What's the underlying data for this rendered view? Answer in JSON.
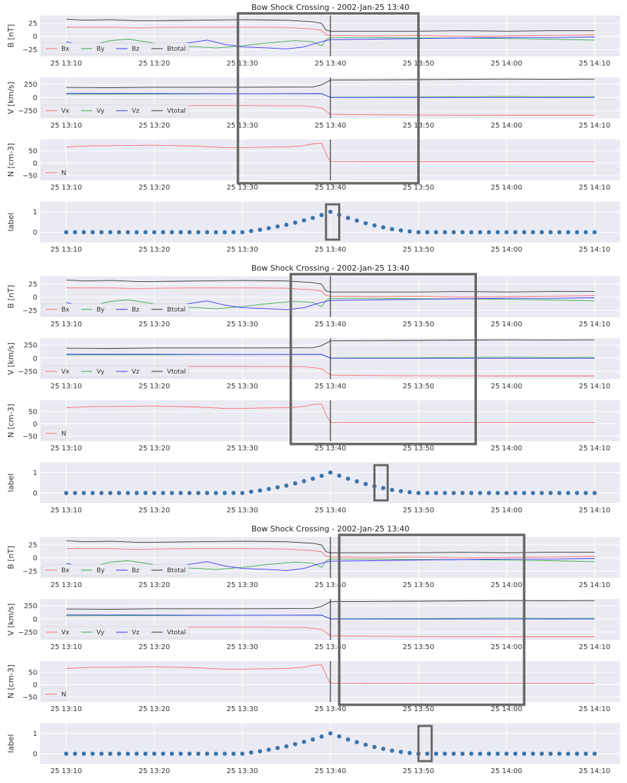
{
  "chart_data": [
    {
      "type": "line",
      "title": "Bow Shock Crossing - 2002-Jan-25 13:40",
      "x_time_range": [
        "2002-01-25 13:07",
        "2002-01-25 14:13"
      ],
      "x_ticks": [
        "25 13:10",
        "25 13:20",
        "25 13:30",
        "25 13:40",
        "25 13:50",
        "25 14:00",
        "25 14:10"
      ],
      "shock_time": "2002-01-25 13:40",
      "grid": true,
      "legend_position": "lower-left",
      "panels": [
        {
          "id": "B",
          "ylabel": "B [nT]",
          "ylim": [
            -38,
            40
          ],
          "yticks": [
            "25",
            "0",
            "−25"
          ],
          "ytick_values": [
            25,
            0,
            -25
          ],
          "series": [
            {
              "name": "Bx",
              "color": "#ff6b6b",
              "points": [
                [
                  "13:10",
                  18
                ],
                [
                  "13:15",
                  18
                ],
                [
                  "13:18",
                  16
                ],
                [
                  "13:20",
                  17
                ],
                [
                  "13:25",
                  18
                ],
                [
                  "13:30",
                  18
                ],
                [
                  "13:35",
                  17
                ],
                [
                  "13:38",
                  14
                ],
                [
                  "13:39",
                  12
                ],
                [
                  "13:39.5",
                  3
                ],
                [
                  "13:40",
                  2
                ],
                [
                  "13:45",
                  1
                ],
                [
                  "13:50",
                  2
                ],
                [
                  "13:55",
                  0
                ],
                [
                  "14:00",
                  1
                ],
                [
                  "14:05",
                  2
                ],
                [
                  "14:10",
                  3
                ]
              ]
            },
            {
              "name": "By",
              "color": "#3aa84a",
              "points": [
                [
                  "13:10",
                  -20
                ],
                [
                  "13:13",
                  -16
                ],
                [
                  "13:15",
                  -8
                ],
                [
                  "13:17",
                  -5
                ],
                [
                  "13:19",
                  -10
                ],
                [
                  "13:22",
                  -18
                ],
                [
                  "13:25",
                  -20
                ],
                [
                  "13:27",
                  -22
                ],
                [
                  "13:30",
                  -18
                ],
                [
                  "13:33",
                  -12
                ],
                [
                  "13:36",
                  -8
                ],
                [
                  "13:38",
                  -10
                ],
                [
                  "13:39",
                  -18
                ],
                [
                  "13:39.5",
                  -6
                ],
                [
                  "13:40",
                  -2
                ],
                [
                  "13:45",
                  -2
                ],
                [
                  "13:50",
                  -3
                ],
                [
                  "13:55",
                  -3
                ],
                [
                  "14:00",
                  -4
                ],
                [
                  "14:05",
                  -5
                ],
                [
                  "14:10",
                  -7
                ]
              ]
            },
            {
              "name": "Bz",
              "color": "#3333ff",
              "points": [
                [
                  "13:10",
                  -10
                ],
                [
                  "13:12",
                  -18
                ],
                [
                  "13:14",
                  -22
                ],
                [
                  "13:16",
                  -20
                ],
                [
                  "13:20",
                  -18
                ],
                [
                  "13:24",
                  -12
                ],
                [
                  "13:26",
                  -7
                ],
                [
                  "13:28",
                  -15
                ],
                [
                  "13:30",
                  -20
                ],
                [
                  "13:33",
                  -22
                ],
                [
                  "13:35",
                  -24
                ],
                [
                  "13:37",
                  -20
                ],
                [
                  "13:38.5",
                  -12
                ],
                [
                  "13:39.5",
                  -8
                ],
                [
                  "13:40",
                  -6
                ],
                [
                  "13:45",
                  -5
                ],
                [
                  "13:50",
                  -4
                ],
                [
                  "13:55",
                  -3
                ],
                [
                  "14:00",
                  -2
                ],
                [
                  "14:05",
                  -2
                ],
                [
                  "14:10",
                  -1
                ]
              ]
            },
            {
              "name": "Btotal",
              "color": "#333333",
              "points": [
                [
                  "13:10",
                  33
                ],
                [
                  "13:12",
                  31
                ],
                [
                  "13:15",
                  32
                ],
                [
                  "13:18",
                  30
                ],
                [
                  "13:20",
                  30
                ],
                [
                  "13:25",
                  31
                ],
                [
                  "13:30",
                  32
                ],
                [
                  "13:35",
                  31
                ],
                [
                  "13:38",
                  28
                ],
                [
                  "13:39",
                  25
                ],
                [
                  "13:39.5",
                  12
                ],
                [
                  "13:40",
                  10
                ],
                [
                  "13:45",
                  10
                ],
                [
                  "13:50",
                  10
                ],
                [
                  "13:55",
                  11
                ],
                [
                  "14:00",
                  10
                ],
                [
                  "14:05",
                  11
                ],
                [
                  "14:10",
                  11
                ]
              ]
            }
          ]
        },
        {
          "id": "V",
          "ylabel": "V [km/s]",
          "ylim": [
            -400,
            380
          ],
          "yticks": [
            "250",
            "0",
            "−250"
          ],
          "ytick_values": [
            250,
            0,
            -250
          ],
          "series": [
            {
              "name": "Vx",
              "color": "#ff6b6b",
              "points": [
                [
                  "13:10",
                  -160
                ],
                [
                  "13:20",
                  -155
                ],
                [
                  "13:30",
                  -155
                ],
                [
                  "13:37",
                  -160
                ],
                [
                  "13:39",
                  -200
                ],
                [
                  "13:40",
                  -320
                ],
                [
                  "13:45",
                  -330
                ],
                [
                  "13:50",
                  -335
                ],
                [
                  "14:00",
                  -340
                ],
                [
                  "14:10",
                  -340
                ]
              ]
            },
            {
              "name": "Vy",
              "color": "#3aa84a",
              "points": [
                [
                  "13:10",
                  60
                ],
                [
                  "13:20",
                  65
                ],
                [
                  "13:30",
                  70
                ],
                [
                  "13:39",
                  70
                ],
                [
                  "13:40",
                  5
                ],
                [
                  "13:50",
                  8
                ],
                [
                  "14:00",
                  20
                ],
                [
                  "14:05",
                  12
                ],
                [
                  "14:10",
                  15
                ]
              ]
            },
            {
              "name": "Vz",
              "color": "#3333ff",
              "points": [
                [
                  "13:10",
                  80
                ],
                [
                  "13:20",
                  75
                ],
                [
                  "13:30",
                  70
                ],
                [
                  "13:39",
                  75
                ],
                [
                  "13:40",
                  0
                ],
                [
                  "13:50",
                  0
                ],
                [
                  "14:00",
                  0
                ],
                [
                  "14:10",
                  0
                ]
              ]
            },
            {
              "name": "Vtotal",
              "color": "#333333",
              "points": [
                [
                  "13:10",
                  190
                ],
                [
                  "13:15",
                  185
                ],
                [
                  "13:20",
                  195
                ],
                [
                  "13:30",
                  195
                ],
                [
                  "13:38",
                  200
                ],
                [
                  "13:39",
                  240
                ],
                [
                  "13:40",
                  330
                ],
                [
                  "13:45",
                  335
                ],
                [
                  "13:50",
                  340
                ],
                [
                  "14:00",
                  350
                ],
                [
                  "14:05",
                  345
                ],
                [
                  "14:10",
                  350
                ]
              ]
            }
          ]
        },
        {
          "id": "N",
          "ylabel": "N [cm-3]",
          "ylim": [
            -70,
            95
          ],
          "yticks": [
            "50",
            "0",
            "−50"
          ],
          "ytick_values": [
            50,
            0,
            -50
          ],
          "series": [
            {
              "name": "N",
              "color": "#ff6b6b",
              "points": [
                [
                  "13:10",
                  65
                ],
                [
                  "13:13",
                  70
                ],
                [
                  "13:15",
                  70
                ],
                [
                  "13:20",
                  72
                ],
                [
                  "13:25",
                  68
                ],
                [
                  "13:28",
                  62
                ],
                [
                  "13:30",
                  62
                ],
                [
                  "13:32",
                  64
                ],
                [
                  "13:35",
                  65
                ],
                [
                  "13:37",
                  70
                ],
                [
                  "13:38",
                  78
                ],
                [
                  "13:39",
                  80
                ],
                [
                  "13:39.6",
                  30
                ],
                [
                  "13:40",
                  6
                ],
                [
                  "13:50",
                  5
                ],
                [
                  "14:00",
                  5
                ],
                [
                  "14:10",
                  5
                ]
              ]
            }
          ]
        },
        {
          "id": "label",
          "type": "scatter",
          "ylabel": "label",
          "ylim": [
            -0.5,
            1.5
          ],
          "yticks": [
            "1",
            "0"
          ],
          "ytick_values": [
            1,
            0
          ],
          "series": [
            {
              "name": "label",
              "color": "#3a75ac",
              "times": [
                "13:10",
                "13:11",
                "13:12",
                "13:13",
                "13:14",
                "13:15",
                "13:16",
                "13:17",
                "13:18",
                "13:19",
                "13:20",
                "13:21",
                "13:22",
                "13:23",
                "13:24",
                "13:25",
                "13:26",
                "13:27",
                "13:28",
                "13:29",
                "13:30",
                "13:31",
                "13:32",
                "13:33",
                "13:34",
                "13:35",
                "13:36",
                "13:37",
                "13:38",
                "13:39",
                "13:40",
                "13:41",
                "13:42",
                "13:43",
                "13:44",
                "13:45",
                "13:46",
                "13:47",
                "13:48",
                "13:49",
                "13:50",
                "13:51",
                "13:52",
                "13:53",
                "13:54",
                "13:55",
                "13:56",
                "13:57",
                "13:58",
                "13:59",
                "14:00",
                "14:01",
                "14:02",
                "14:03",
                "14:04",
                "14:05",
                "14:06",
                "14:07",
                "14:08",
                "14:09",
                "14:10"
              ],
              "values": [
                0,
                0,
                0,
                0,
                0,
                0,
                0,
                0,
                0,
                0,
                0,
                0,
                0,
                0,
                0,
                0,
                0,
                0,
                0,
                0,
                0,
                0.06,
                0.12,
                0.2,
                0.28,
                0.36,
                0.47,
                0.58,
                0.7,
                0.84,
                1,
                0.85,
                0.7,
                0.57,
                0.44,
                0.33,
                0.24,
                0.15,
                0.09,
                0.04,
                0,
                0,
                0,
                0,
                0,
                0,
                0,
                0,
                0,
                0,
                0,
                0,
                0,
                0,
                0,
                0,
                0,
                0,
                0,
                0,
                0
              ]
            }
          ]
        }
      ],
      "replicas": [
        {
          "window": [
            "13:29.5",
            "13:50"
          ],
          "label_window": [
            "13:39.5",
            "13:41"
          ]
        },
        {
          "window": [
            "13:35.5",
            "13:56.5"
          ],
          "label_window": [
            "13:45",
            "13:46.5"
          ]
        },
        {
          "window": [
            "13:41",
            "14:02"
          ],
          "label_window": [
            "13:50",
            "13:51.5"
          ]
        }
      ]
    }
  ]
}
